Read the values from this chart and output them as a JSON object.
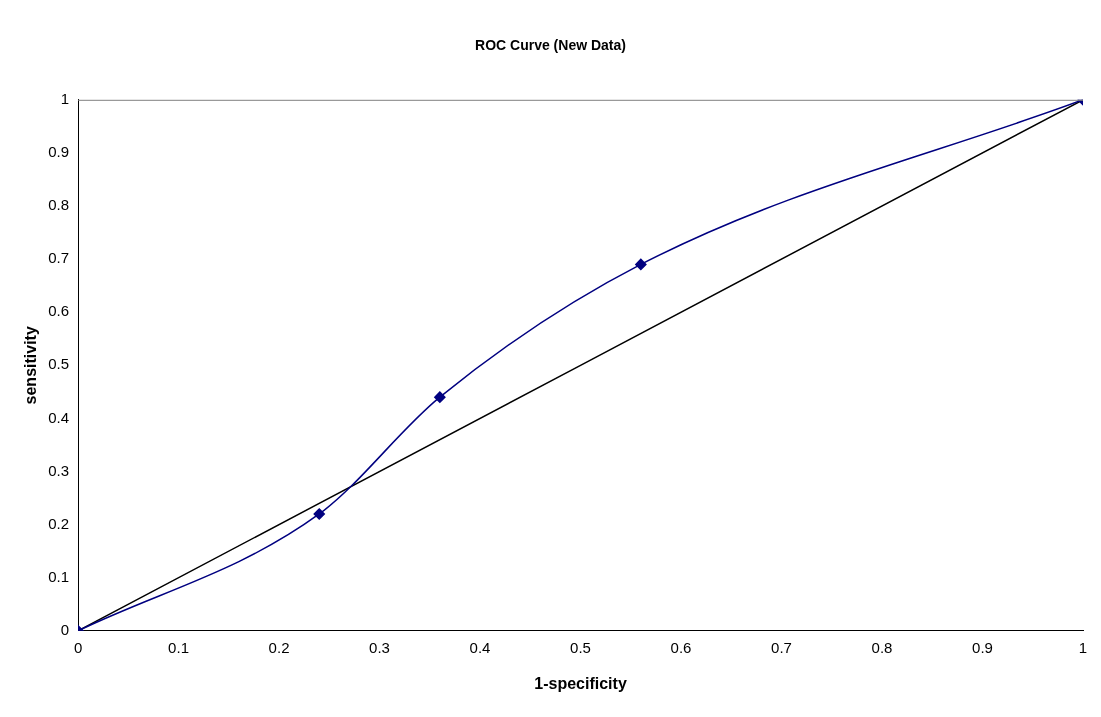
{
  "chart_data": {
    "type": "line",
    "title": "ROC Curve (New Data)",
    "xlabel": "1-specificity",
    "ylabel": "sensitivity",
    "xlim": [
      0,
      1
    ],
    "ylim": [
      0,
      1
    ],
    "xticks": [
      0,
      0.1,
      0.2,
      0.3,
      0.4,
      0.5,
      0.6,
      0.7,
      0.8,
      0.9,
      1
    ],
    "yticks": [
      0,
      0.1,
      0.2,
      0.3,
      0.4,
      0.5,
      0.6,
      0.7,
      0.8,
      0.9,
      1
    ],
    "grid": false,
    "legend": false,
    "series": [
      {
        "color": "#000080",
        "x": [
          0,
          0.24,
          0.36,
          0.56,
          1
        ],
        "values": [
          0,
          0.22,
          0.44,
          0.69,
          1
        ],
        "marker": "diamond"
      },
      {
        "color": "#000000",
        "x": [
          0,
          1
        ],
        "values": [
          0,
          1
        ],
        "marker": "none"
      }
    ]
  }
}
